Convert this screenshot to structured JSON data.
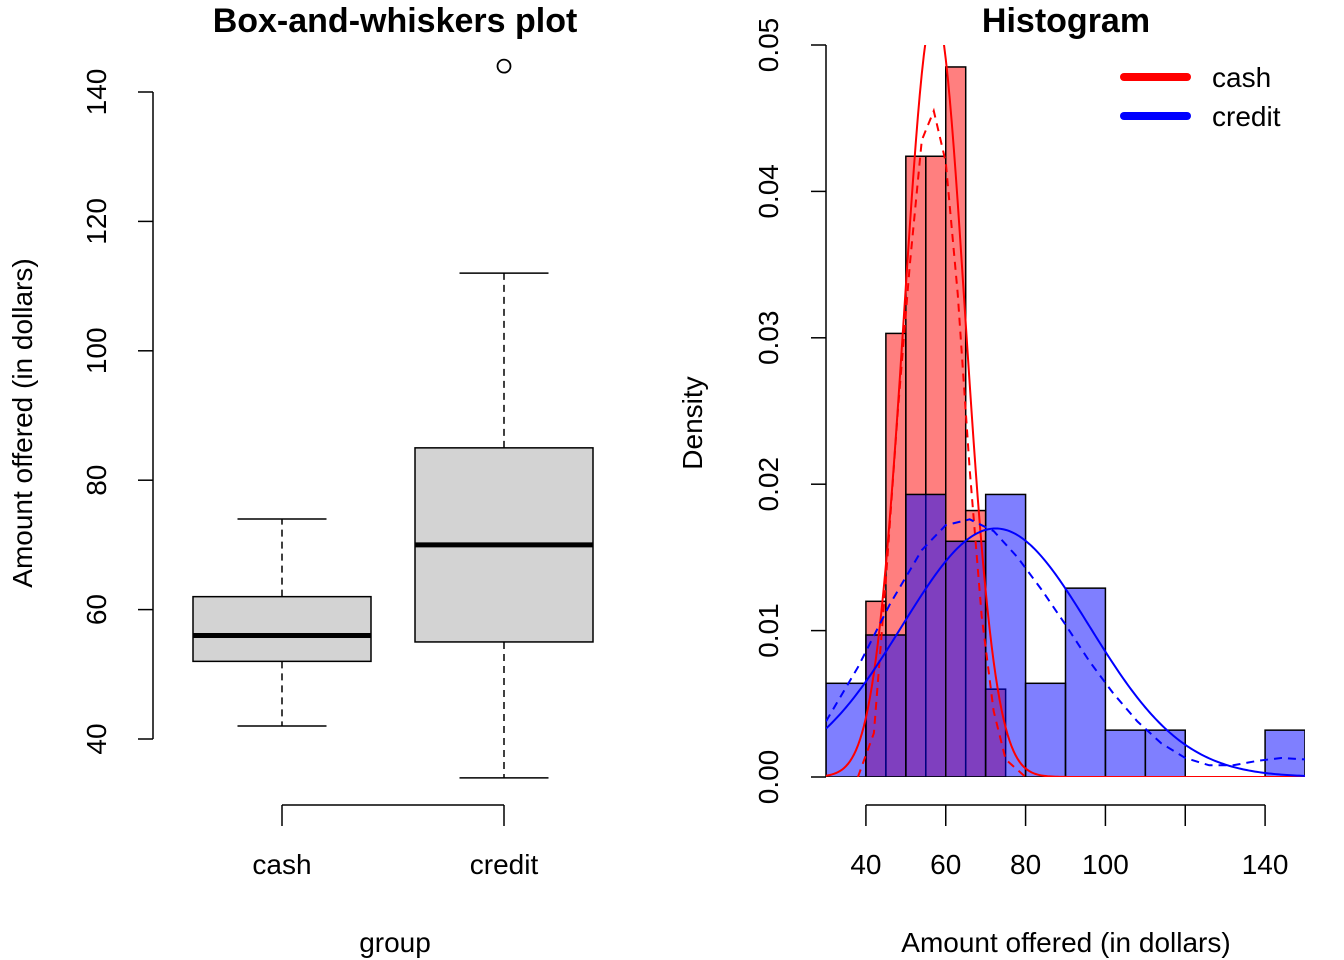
{
  "chart_data": [
    {
      "type": "box",
      "title": "Box-and-whiskers plot",
      "xlabel": "group",
      "ylabel": "Amount offered (in dollars)",
      "ylim": [
        34,
        145
      ],
      "yticks": [
        "40",
        "60",
        "80",
        "100",
        "120",
        "140"
      ],
      "categories": [
        "cash",
        "credit"
      ],
      "fill_color": "#d3d3d3",
      "boxes": [
        {
          "category": "cash",
          "whisker_low": 42,
          "q1": 52,
          "median": 56,
          "q3": 62,
          "whisker_high": 74,
          "outliers": []
        },
        {
          "category": "credit",
          "whisker_low": 34,
          "q1": 55,
          "median": 70,
          "q3": 85,
          "whisker_high": 112,
          "outliers": [
            144
          ]
        }
      ]
    },
    {
      "type": "histogram",
      "title": "Histogram",
      "xlabel": "Amount offered (in dollars)",
      "ylabel": "Density",
      "xlim": [
        30,
        150
      ],
      "ylim": [
        0,
        0.05
      ],
      "xticks": [
        "40",
        "60",
        "80",
        "100",
        "140"
      ],
      "yticks": [
        "0.00",
        "0.01",
        "0.02",
        "0.03",
        "0.04",
        "0.05"
      ],
      "legend": {
        "position": "top-right",
        "entries": [
          "cash",
          "credit"
        ]
      },
      "series": [
        {
          "name": "cash",
          "color": "#ff0000",
          "bar_fill": "#f88080",
          "bars": [
            {
              "x0": 40,
              "x1": 45,
              "density": 0.012
            },
            {
              "x0": 45,
              "x1": 50,
              "density": 0.0303
            },
            {
              "x0": 50,
              "x1": 55,
              "density": 0.0424
            },
            {
              "x0": 55,
              "x1": 60,
              "density": 0.0424
            },
            {
              "x0": 60,
              "x1": 65,
              "density": 0.0485
            },
            {
              "x0": 65,
              "x1": 70,
              "density": 0.0182
            },
            {
              "x0": 70,
              "x1": 75,
              "density": 0.006
            }
          ],
          "normal_curve": {
            "mean": 57.2,
            "sd": 7.6
          },
          "kde_curve": [
            [
              38,
              0.0
            ],
            [
              42,
              0.003
            ],
            [
              45,
              0.0135
            ],
            [
              48,
              0.025
            ],
            [
              51,
              0.035
            ],
            [
              54,
              0.0435
            ],
            [
              57,
              0.0455
            ],
            [
              60,
              0.042
            ],
            [
              63,
              0.033
            ],
            [
              66,
              0.021
            ],
            [
              69,
              0.011
            ],
            [
              72,
              0.0045
            ],
            [
              75,
              0.0012
            ],
            [
              80,
              0.0
            ]
          ]
        },
        {
          "name": "credit",
          "color": "#0000ff",
          "bar_fill": "#8080ff",
          "bars": [
            {
              "x0": 30,
              "x1": 40,
              "density": 0.0064
            },
            {
              "x0": 40,
              "x1": 50,
              "density": 0.0097
            },
            {
              "x0": 50,
              "x1": 60,
              "density": 0.0193
            },
            {
              "x0": 60,
              "x1": 70,
              "density": 0.0161
            },
            {
              "x0": 70,
              "x1": 80,
              "density": 0.0193
            },
            {
              "x0": 80,
              "x1": 90,
              "density": 0.0064
            },
            {
              "x0": 90,
              "x1": 100,
              "density": 0.0129
            },
            {
              "x0": 100,
              "x1": 110,
              "density": 0.0032
            },
            {
              "x0": 110,
              "x1": 120,
              "density": 0.0032
            },
            {
              "x0": 140,
              "x1": 150,
              "density": 0.0032
            }
          ],
          "normal_curve": {
            "mean": 72.5,
            "sd": 23.5
          },
          "kde_curve": [
            [
              30,
              0.0038
            ],
            [
              38,
              0.0075
            ],
            [
              46,
              0.0118
            ],
            [
              54,
              0.0155
            ],
            [
              60,
              0.0172
            ],
            [
              66,
              0.0176
            ],
            [
              72,
              0.0168
            ],
            [
              78,
              0.015
            ],
            [
              84,
              0.0128
            ],
            [
              90,
              0.0104
            ],
            [
              96,
              0.0079
            ],
            [
              102,
              0.0057
            ],
            [
              108,
              0.0038
            ],
            [
              114,
              0.0023
            ],
            [
              120,
              0.0013
            ],
            [
              126,
              0.0008
            ],
            [
              132,
              0.0008
            ],
            [
              138,
              0.0011
            ],
            [
              144,
              0.0013
            ],
            [
              150,
              0.0012
            ]
          ]
        }
      ]
    }
  ]
}
